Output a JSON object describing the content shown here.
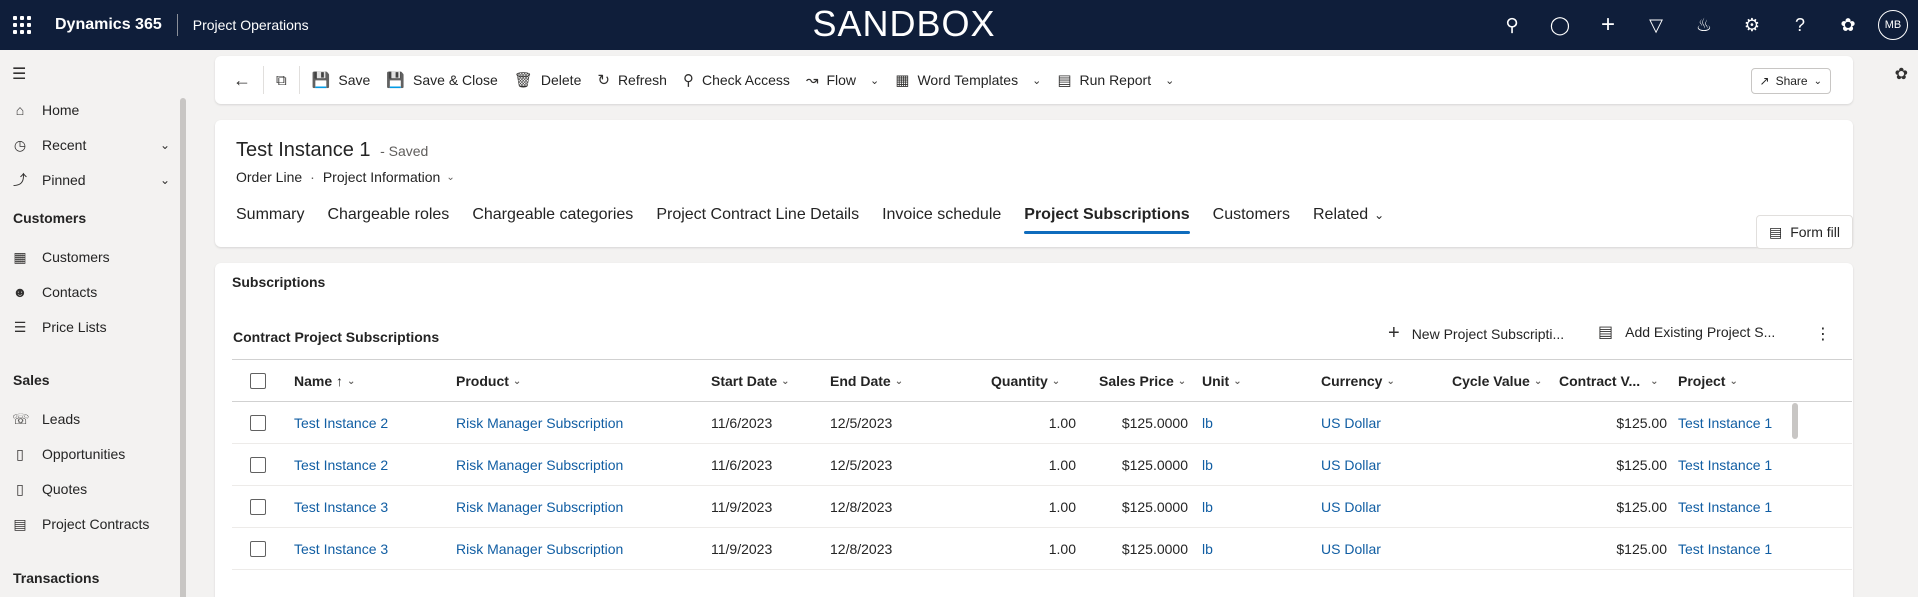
{
  "topbar": {
    "app_title": "Dynamics 365",
    "area_title": "Project Operations",
    "environment_banner": "SANDBOX",
    "avatar_initials": "MB",
    "background_color": "#0f1e3a"
  },
  "sidebar": {
    "items_top": [
      {
        "label": "Home",
        "icon": "home-icon"
      },
      {
        "label": "Recent",
        "icon": "clock-icon"
      },
      {
        "label": "Pinned",
        "icon": "pin-icon"
      }
    ],
    "groups": [
      {
        "title": "Customers",
        "items": [
          {
            "label": "Customers",
            "icon": "building-icon"
          },
          {
            "label": "Contacts",
            "icon": "person-icon"
          },
          {
            "label": "Price Lists",
            "icon": "stack-icon"
          }
        ]
      },
      {
        "title": "Sales",
        "items": [
          {
            "label": "Leads",
            "icon": "phone-person-icon"
          },
          {
            "label": "Opportunities",
            "icon": "document-icon"
          },
          {
            "label": "Quotes",
            "icon": "document-icon"
          },
          {
            "label": "Project Contracts",
            "icon": "contract-icon"
          }
        ]
      },
      {
        "title": "Transactions",
        "items": []
      }
    ]
  },
  "commandbar": {
    "save": "Save",
    "save_close": "Save & Close",
    "delete": "Delete",
    "refresh": "Refresh",
    "check_access": "Check Access",
    "flow": "Flow",
    "word_templates": "Word Templates",
    "run_report": "Run Report",
    "share": "Share"
  },
  "record": {
    "title": "Test Instance 1",
    "status": "- Saved",
    "entity": "Order Line",
    "form": "Project Information"
  },
  "tabs": [
    {
      "label": "Summary",
      "active": false
    },
    {
      "label": "Chargeable roles",
      "active": false
    },
    {
      "label": "Chargeable categories",
      "active": false
    },
    {
      "label": "Project Contract Line Details",
      "active": false
    },
    {
      "label": "Invoice schedule",
      "active": false
    },
    {
      "label": "Project Subscriptions",
      "active": true
    },
    {
      "label": "Customers",
      "active": false
    },
    {
      "label": "Related",
      "active": false
    }
  ],
  "form_fill": "Form fill",
  "section": {
    "title": "Subscriptions",
    "grid_title": "Contract Project Subscriptions",
    "new_button": "New Project Subscripti...",
    "add_existing_button": "Add Existing Project S...",
    "columns": [
      "Name ↑",
      "Product",
      "Start Date",
      "End Date",
      "Quantity",
      "Sales Price",
      "Unit",
      "Currency",
      "Cycle Value",
      "Contract V...",
      "Project"
    ],
    "rows": [
      [
        "Test Instance 2",
        "Risk Manager Subscription",
        "11/6/2023",
        "12/5/2023",
        "1.00",
        "$125.0000",
        "lb",
        "US Dollar",
        "",
        "$125.00",
        "Test Instance 1"
      ],
      [
        "Test Instance 2",
        "Risk Manager Subscription",
        "11/6/2023",
        "12/5/2023",
        "1.00",
        "$125.0000",
        "lb",
        "US Dollar",
        "",
        "$125.00",
        "Test Instance 1"
      ],
      [
        "Test Instance 3",
        "Risk Manager Subscription",
        "11/9/2023",
        "12/8/2023",
        "1.00",
        "$125.0000",
        "lb",
        "US Dollar",
        "",
        "$125.00",
        "Test Instance 1"
      ],
      [
        "Test Instance 3",
        "Risk Manager Subscription",
        "11/9/2023",
        "12/8/2023",
        "1.00",
        "$125.0000",
        "lb",
        "US Dollar",
        "",
        "$125.00",
        "Test Instance 1"
      ]
    ]
  },
  "colors": {
    "accent": "#0f6cbd",
    "link": "#115ea3"
  }
}
